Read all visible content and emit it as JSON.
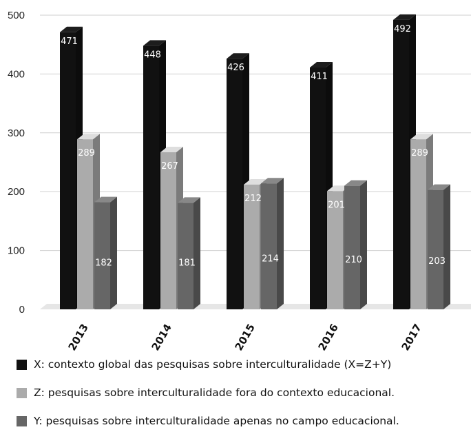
{
  "chart_data": {
    "type": "bar",
    "categories": [
      "2013",
      "2014",
      "2015",
      "2016",
      "2017"
    ],
    "series": [
      {
        "name": "X: contexto global das pesquisas sobre interculturalidade (X=Z+Y)",
        "color": "#111111",
        "values": [
          471,
          448,
          426,
          411,
          492
        ]
      },
      {
        "name": "Z: pesquisas sobre interculturalidade fora do contexto educacional.",
        "color": "#ababab",
        "values": [
          289,
          267,
          212,
          201,
          289
        ]
      },
      {
        "name": "Y: pesquisas sobre interculturalidade apenas no campo educacional.",
        "color": "#666666",
        "values": [
          182,
          181,
          214,
          210,
          203
        ]
      }
    ],
    "ylim": [
      0,
      500
    ],
    "yticks": [
      0,
      100,
      200,
      300,
      400,
      500
    ],
    "grid": true,
    "legend_position": "bottom",
    "style": "3d-bars"
  }
}
